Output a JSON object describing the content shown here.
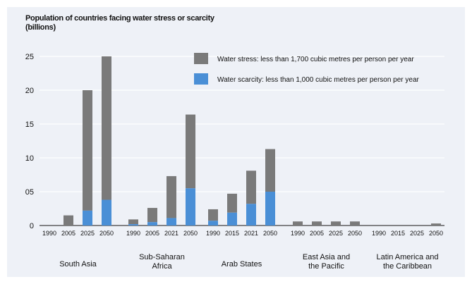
{
  "chart_data": {
    "type": "bar",
    "stacked": true,
    "title_line1": "Population of countries facing water stress or scarcity",
    "title_line2": "(billions)",
    "y_ticks": [
      "0",
      "05",
      "10",
      "15",
      "20",
      "25"
    ],
    "y_tick_values": [
      0,
      5,
      10,
      15,
      20,
      25
    ],
    "ylim": [
      0,
      25
    ],
    "grid": true,
    "legend_position": "top-right",
    "series": [
      {
        "name": "Water stress: less than 1,700 cubic metres per person per year",
        "color": "#7a7a7a"
      },
      {
        "name": "Water scarcity: less than 1,000 cubic metres per person per year",
        "color": "#4a8fd6"
      }
    ],
    "groups": [
      {
        "label_lines": [
          "South Asia"
        ],
        "years": [
          "1990",
          "2005",
          "2025",
          "2050"
        ],
        "scarcity": [
          0,
          0,
          2.2,
          3.8
        ],
        "total": [
          0,
          1.5,
          20,
          25
        ]
      },
      {
        "label_lines": [
          "Sub-Saharan",
          "Africa"
        ],
        "years": [
          "1990",
          "2005",
          "2021",
          "2050"
        ],
        "scarcity": [
          0.2,
          0.5,
          1.1,
          5.5
        ],
        "total": [
          0.9,
          2.6,
          7.3,
          16.4
        ]
      },
      {
        "label_lines": [
          "Arab States"
        ],
        "years": [
          "1990",
          "2015",
          "2021",
          "2050"
        ],
        "scarcity": [
          0.7,
          1.9,
          3.2,
          5.0
        ],
        "total": [
          2.4,
          4.7,
          8.1,
          11.3
        ]
      },
      {
        "label_lines": [
          "East Asia and",
          "the Pacific"
        ],
        "years": [
          "1990",
          "2005",
          "2025",
          "2050"
        ],
        "scarcity": [
          0,
          0,
          0,
          0
        ],
        "total": [
          0.6,
          0.6,
          0.6,
          0.6
        ]
      },
      {
        "label_lines": [
          "Latin America and",
          "the Caribbean"
        ],
        "years": [
          "1990",
          "2015",
          "2025",
          "2050"
        ],
        "scarcity": [
          0,
          0,
          0,
          0
        ],
        "total": [
          0,
          0,
          0,
          0.3
        ]
      }
    ]
  }
}
